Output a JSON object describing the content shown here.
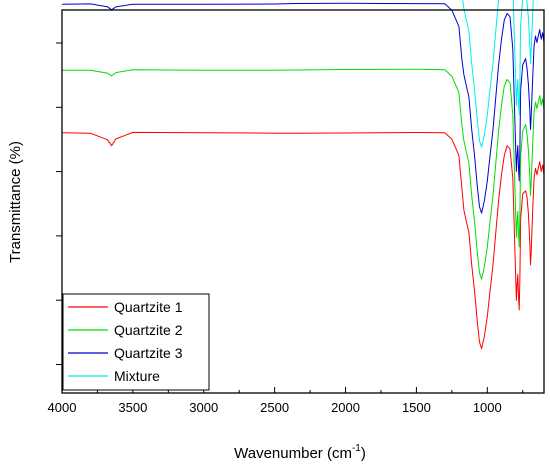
{
  "chart_data": {
    "type": "line",
    "title": "",
    "xlabel": "Wavenumber (cm",
    "xlabel_superscript": "-1",
    "xlabel_suffix": ")",
    "ylabel": "Transmittance (%)",
    "xlim": [
      4000,
      600
    ],
    "x_reversed": true,
    "y_tick_labels_shown": false,
    "x_ticks": [
      4000,
      3500,
      3000,
      2500,
      2000,
      1500,
      1000
    ],
    "x_tick_labels": [
      "4000",
      "3500",
      "3000",
      "2500",
      "2000",
      "1500",
      "1000"
    ],
    "legend_position": "bottom-left",
    "grid": false,
    "series": [
      {
        "name": "Quartzite 1",
        "color": "#ff0000",
        "x": [
          4000,
          3800,
          3680,
          3650,
          3620,
          3500,
          3000,
          2500,
          2350,
          2000,
          1500,
          1300,
          1250,
          1200,
          1180,
          1165,
          1150,
          1130,
          1110,
          1090,
          1070,
          1055,
          1040,
          1020,
          1000,
          980,
          960,
          940,
          920,
          900,
          880,
          860,
          840,
          820,
          810,
          800,
          795,
          790,
          785,
          780,
          775,
          770,
          765,
          750,
          730,
          720,
          710,
          700,
          695,
          690,
          680,
          670,
          660,
          650,
          640,
          630,
          620,
          610,
          600
        ],
        "y": [
          0.69,
          0.69,
          0.67,
          0.65,
          0.67,
          0.69,
          0.69,
          0.69,
          0.69,
          0.69,
          0.69,
          0.69,
          0.67,
          0.62,
          0.52,
          0.45,
          0.42,
          0.38,
          0.28,
          0.2,
          0.1,
          0.04,
          0.02,
          0.06,
          0.12,
          0.2,
          0.28,
          0.38,
          0.48,
          0.56,
          0.62,
          0.65,
          0.64,
          0.55,
          0.4,
          0.25,
          0.17,
          0.22,
          0.25,
          0.18,
          0.14,
          0.24,
          0.42,
          0.5,
          0.51,
          0.49,
          0.44,
          0.35,
          0.28,
          0.32,
          0.45,
          0.55,
          0.58,
          0.56,
          0.58,
          0.6,
          0.57,
          0.59,
          0.56
        ]
      },
      {
        "name": "Quartzite 2",
        "color": "#00dd00",
        "x": [
          4000,
          3800,
          3680,
          3650,
          3620,
          3500,
          3000,
          2500,
          2350,
          2000,
          1500,
          1300,
          1250,
          1200,
          1180,
          1165,
          1150,
          1130,
          1110,
          1090,
          1070,
          1055,
          1040,
          1020,
          1000,
          980,
          960,
          940,
          920,
          900,
          880,
          860,
          840,
          820,
          810,
          800,
          795,
          790,
          785,
          780,
          775,
          770,
          765,
          750,
          730,
          720,
          710,
          700,
          695,
          690,
          680,
          670,
          660,
          650,
          640,
          630,
          620,
          610,
          600
        ],
        "y": [
          0.69,
          0.69,
          0.68,
          0.67,
          0.68,
          0.69,
          0.69,
          0.69,
          0.69,
          0.69,
          0.69,
          0.69,
          0.67,
          0.62,
          0.52,
          0.47,
          0.44,
          0.4,
          0.3,
          0.22,
          0.12,
          0.06,
          0.04,
          0.08,
          0.14,
          0.22,
          0.3,
          0.4,
          0.5,
          0.58,
          0.64,
          0.66,
          0.65,
          0.55,
          0.4,
          0.25,
          0.17,
          0.22,
          0.25,
          0.18,
          0.14,
          0.24,
          0.42,
          0.5,
          0.52,
          0.49,
          0.44,
          0.36,
          0.3,
          0.34,
          0.46,
          0.56,
          0.59,
          0.57,
          0.59,
          0.61,
          0.58,
          0.6,
          0.57
        ]
      },
      {
        "name": "Quartzite 3",
        "color": "#0000cc",
        "x": [
          4000,
          3800,
          3680,
          3650,
          3620,
          3500,
          3000,
          2500,
          2350,
          2000,
          1500,
          1300,
          1250,
          1200,
          1180,
          1165,
          1150,
          1130,
          1110,
          1090,
          1070,
          1055,
          1040,
          1020,
          1000,
          980,
          960,
          940,
          920,
          900,
          880,
          860,
          840,
          820,
          810,
          800,
          795,
          790,
          785,
          780,
          775,
          770,
          765,
          750,
          730,
          720,
          710,
          700,
          695,
          690,
          680,
          670,
          660,
          650,
          640,
          630,
          620,
          610,
          600
        ],
        "y": [
          0.69,
          0.69,
          0.68,
          0.67,
          0.68,
          0.69,
          0.69,
          0.69,
          0.69,
          0.69,
          0.69,
          0.69,
          0.67,
          0.62,
          0.52,
          0.47,
          0.44,
          0.4,
          0.3,
          0.22,
          0.12,
          0.06,
          0.04,
          0.08,
          0.14,
          0.22,
          0.3,
          0.4,
          0.5,
          0.58,
          0.64,
          0.66,
          0.65,
          0.55,
          0.4,
          0.25,
          0.17,
          0.22,
          0.25,
          0.18,
          0.14,
          0.24,
          0.42,
          0.5,
          0.52,
          0.49,
          0.44,
          0.36,
          0.3,
          0.34,
          0.46,
          0.56,
          0.59,
          0.57,
          0.59,
          0.61,
          0.58,
          0.6,
          0.57
        ]
      },
      {
        "name": "Mixture",
        "color": "#00eeee",
        "x": [
          4000,
          3800,
          3680,
          3650,
          3620,
          3500,
          3000,
          2500,
          2350,
          2000,
          1500,
          1300,
          1250,
          1200,
          1180,
          1165,
          1150,
          1130,
          1110,
          1090,
          1070,
          1055,
          1040,
          1020,
          1000,
          980,
          960,
          940,
          920,
          900,
          880,
          860,
          840,
          820,
          810,
          800,
          795,
          790,
          785,
          780,
          775,
          770,
          765,
          750,
          730,
          720,
          710,
          700,
          695,
          690,
          680,
          670,
          660,
          650,
          640,
          630,
          620,
          610,
          600
        ],
        "y": [
          0.69,
          0.69,
          0.68,
          0.67,
          0.68,
          0.69,
          0.69,
          0.69,
          0.69,
          0.69,
          0.69,
          0.69,
          0.67,
          0.62,
          0.52,
          0.47,
          0.44,
          0.4,
          0.3,
          0.22,
          0.12,
          0.06,
          0.04,
          0.08,
          0.14,
          0.22,
          0.3,
          0.4,
          0.5,
          0.58,
          0.64,
          0.66,
          0.65,
          0.55,
          0.4,
          0.25,
          0.17,
          0.22,
          0.25,
          0.18,
          0.14,
          0.24,
          0.42,
          0.5,
          0.52,
          0.49,
          0.44,
          0.36,
          0.3,
          0.34,
          0.46,
          0.56,
          0.59,
          0.57,
          0.59,
          0.61,
          0.58,
          0.6,
          0.57
        ]
      }
    ]
  }
}
